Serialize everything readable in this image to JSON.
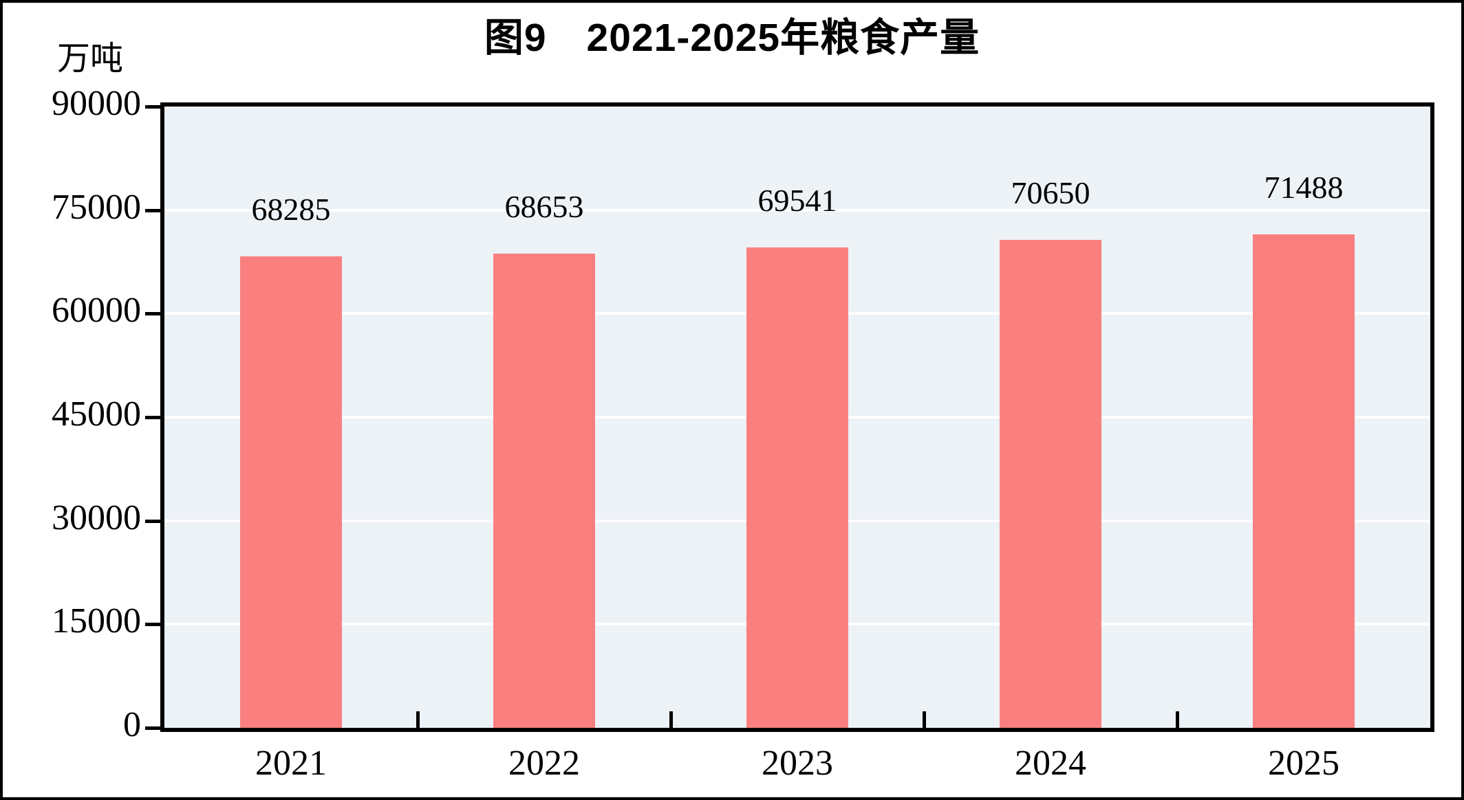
{
  "chart_data": {
    "type": "bar",
    "title": "图9　2021-2025年粮食产量",
    "ylabel": "万吨",
    "xlabel": "",
    "categories": [
      "2021",
      "2022",
      "2023",
      "2024",
      "2025"
    ],
    "values": [
      68285,
      68653,
      69541,
      70650,
      71488
    ],
    "ylim": [
      0,
      90000
    ],
    "yticks": [
      0,
      15000,
      30000,
      45000,
      60000,
      75000,
      90000
    ],
    "grid": true,
    "legend_position": "none",
    "colors": {
      "bar": "#FA8080",
      "plot_background": "#ECF2F6",
      "gridline": "#FFFFFF",
      "axis": "#000000",
      "text": "#000000"
    }
  }
}
